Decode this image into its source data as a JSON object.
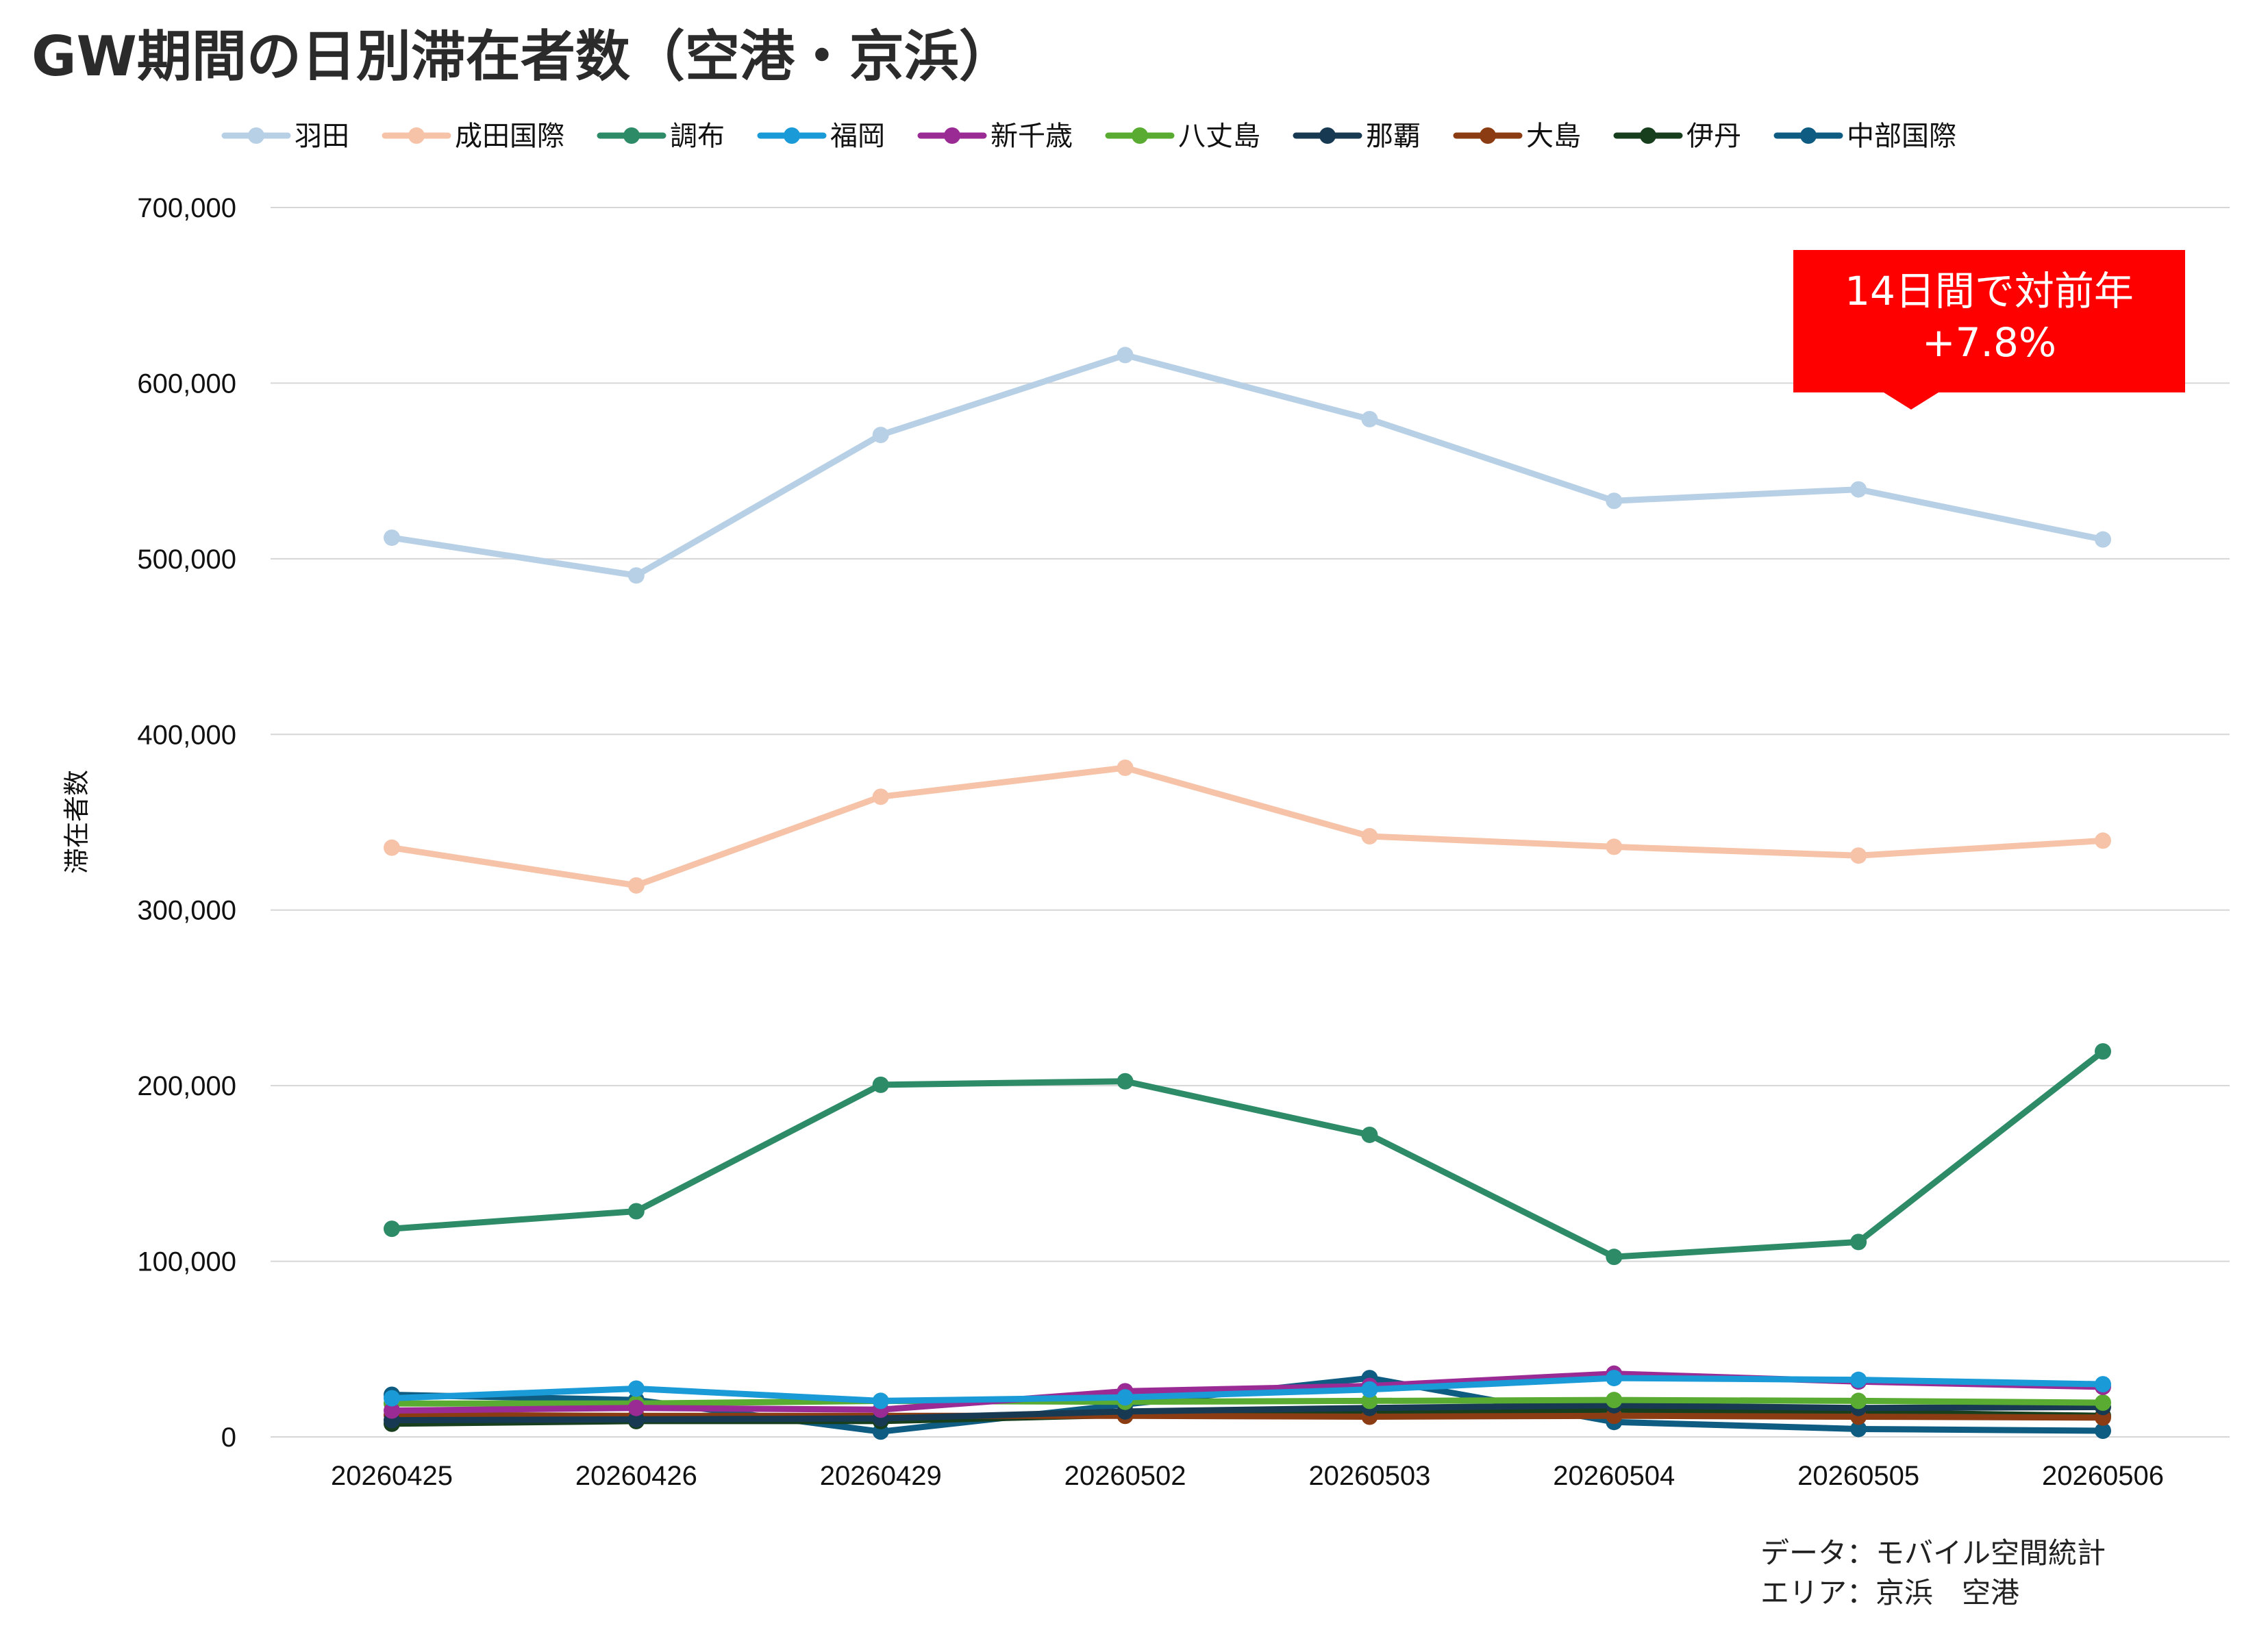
{
  "chart_data": {
    "type": "line",
    "title": "GW期間の日別滞在者数（空港・京浜）",
    "ylabel": "滞在者数",
    "xlabel": "",
    "categories": [
      "20260425",
      "20260426",
      "20260429",
      "20260502",
      "20260503",
      "20260504",
      "20260505",
      "20260506"
    ],
    "ylim": [
      0,
      700000
    ],
    "yticks": [
      0,
      100000,
      200000,
      300000,
      400000,
      500000,
      600000,
      700000
    ],
    "ytick_labels": [
      "0",
      "100,000",
      "200,000",
      "300,000",
      "400,000",
      "500,000",
      "600,000",
      "700,000"
    ],
    "grid": true,
    "legend_position": "top",
    "series": [
      {
        "name": "羽田",
        "color": "#b8d0e6",
        "values": [
          512000,
          490500,
          570500,
          616000,
          579500,
          533000,
          539500,
          511000
        ]
      },
      {
        "name": "成田国際",
        "color": "#f6c3a8",
        "values": [
          335500,
          314000,
          364500,
          381000,
          342000,
          336000,
          331000,
          339500
        ]
      },
      {
        "name": "調布",
        "color": "#2e8b68",
        "values": [
          118500,
          128500,
          200500,
          202500,
          172000,
          102500,
          111000,
          219500
        ]
      },
      {
        "name": "福岡",
        "color": "#1a9ad6",
        "values": [
          22000,
          27500,
          20500,
          22500,
          27000,
          33500,
          32500,
          30000
        ]
      },
      {
        "name": "新千歳",
        "color": "#9b2b94",
        "values": [
          15000,
          16500,
          15500,
          26000,
          29000,
          36000,
          31500,
          28500
        ]
      },
      {
        "name": "八丈島",
        "color": "#5aab32",
        "values": [
          19000,
          19000,
          20500,
          20000,
          20500,
          21000,
          20500,
          19500
        ]
      },
      {
        "name": "那覇",
        "color": "#173a52",
        "values": [
          9500,
          10000,
          10500,
          14500,
          16500,
          18000,
          16500,
          17000
        ]
      },
      {
        "name": "大島",
        "color": "#8b3c12",
        "values": [
          12500,
          12000,
          12000,
          12000,
          11500,
          12000,
          11500,
          11000
        ]
      },
      {
        "name": "伊丹",
        "color": "#173f1d",
        "values": [
          7500,
          9000,
          9000,
          12500,
          14000,
          15500,
          14000,
          12000
        ]
      },
      {
        "name": "中部国際",
        "color": "#0f5c82",
        "values": [
          24000,
          21000,
          3000,
          18500,
          33500,
          8500,
          4500,
          3500
        ]
      }
    ],
    "annotation": {
      "line1": "14日間で対前年",
      "line2": "+7.8%",
      "color": "#ff0000"
    },
    "footer": {
      "line1": "データ：モバイル空間統計",
      "line2": "エリア：京浜　空港"
    }
  }
}
